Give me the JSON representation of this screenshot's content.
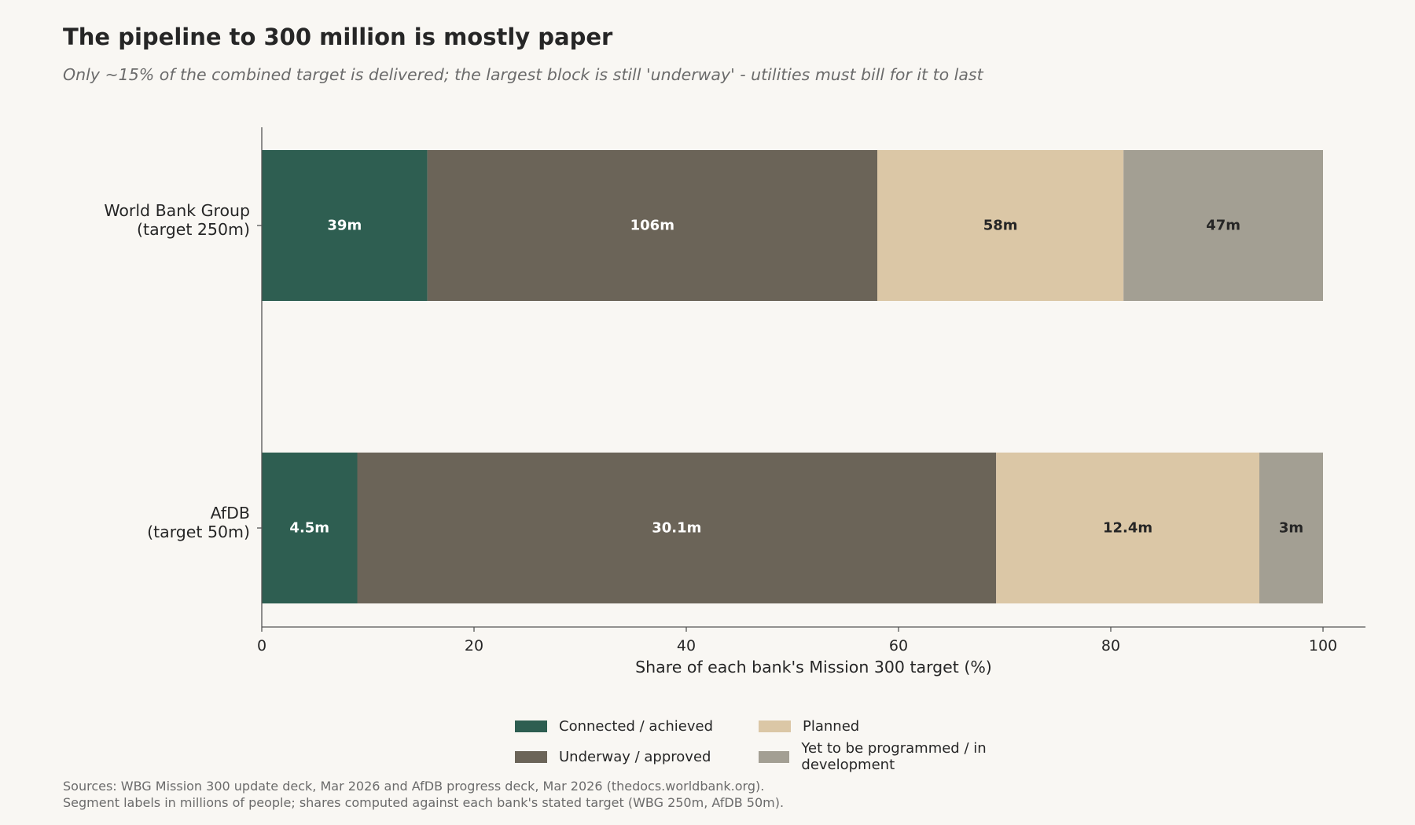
{
  "title": "The pipeline to 300 million is mostly paper",
  "subtitle": "Only ~15% of the combined target is delivered; the largest block is still 'underway' - utilities must bill for it to last",
  "chart_data": {
    "type": "bar",
    "orientation": "horizontal",
    "stacked": true,
    "xlabel": "Share of each bank's Mission 300 target (%)",
    "xlim": [
      0,
      104
    ],
    "xticks": [
      0,
      20,
      40,
      60,
      80,
      100
    ],
    "categories": [
      [
        "World Bank Group",
        "(target 250m)"
      ],
      [
        "AfDB",
        "(target 50m)"
      ]
    ],
    "series": [
      {
        "name": "Connected / achieved",
        "color": "#2e5e51",
        "values": [
          15.6,
          9.0
        ],
        "labels": [
          "39m",
          "4.5m"
        ],
        "label_color": "#ffffff"
      },
      {
        "name": "Underway / approved",
        "color": "#6b6458",
        "values": [
          42.4,
          60.2
        ],
        "labels": [
          "106m",
          "30.1m"
        ],
        "label_color": "#ffffff"
      },
      {
        "name": "Planned",
        "color": "#dbc7a6",
        "values": [
          23.2,
          24.8
        ],
        "labels": [
          "58m",
          "12.4m"
        ],
        "label_color": "#262626"
      },
      {
        "name": "Yet to be programmed / in development",
        "color": "#a39f93",
        "values": [
          18.8,
          6.0
        ],
        "labels": [
          "47m",
          "3m"
        ],
        "label_color": "#262626"
      }
    ],
    "grid": false,
    "legend_position": "bottom-center"
  },
  "source": [
    "Sources: WBG Mission 300 update deck, Mar 2026 and AfDB progress deck, Mar 2026 (thedocs.worldbank.org).",
    "Segment labels in millions of people; shares computed against each bank's stated target (WBG 250m, AfDB 50m)."
  ]
}
